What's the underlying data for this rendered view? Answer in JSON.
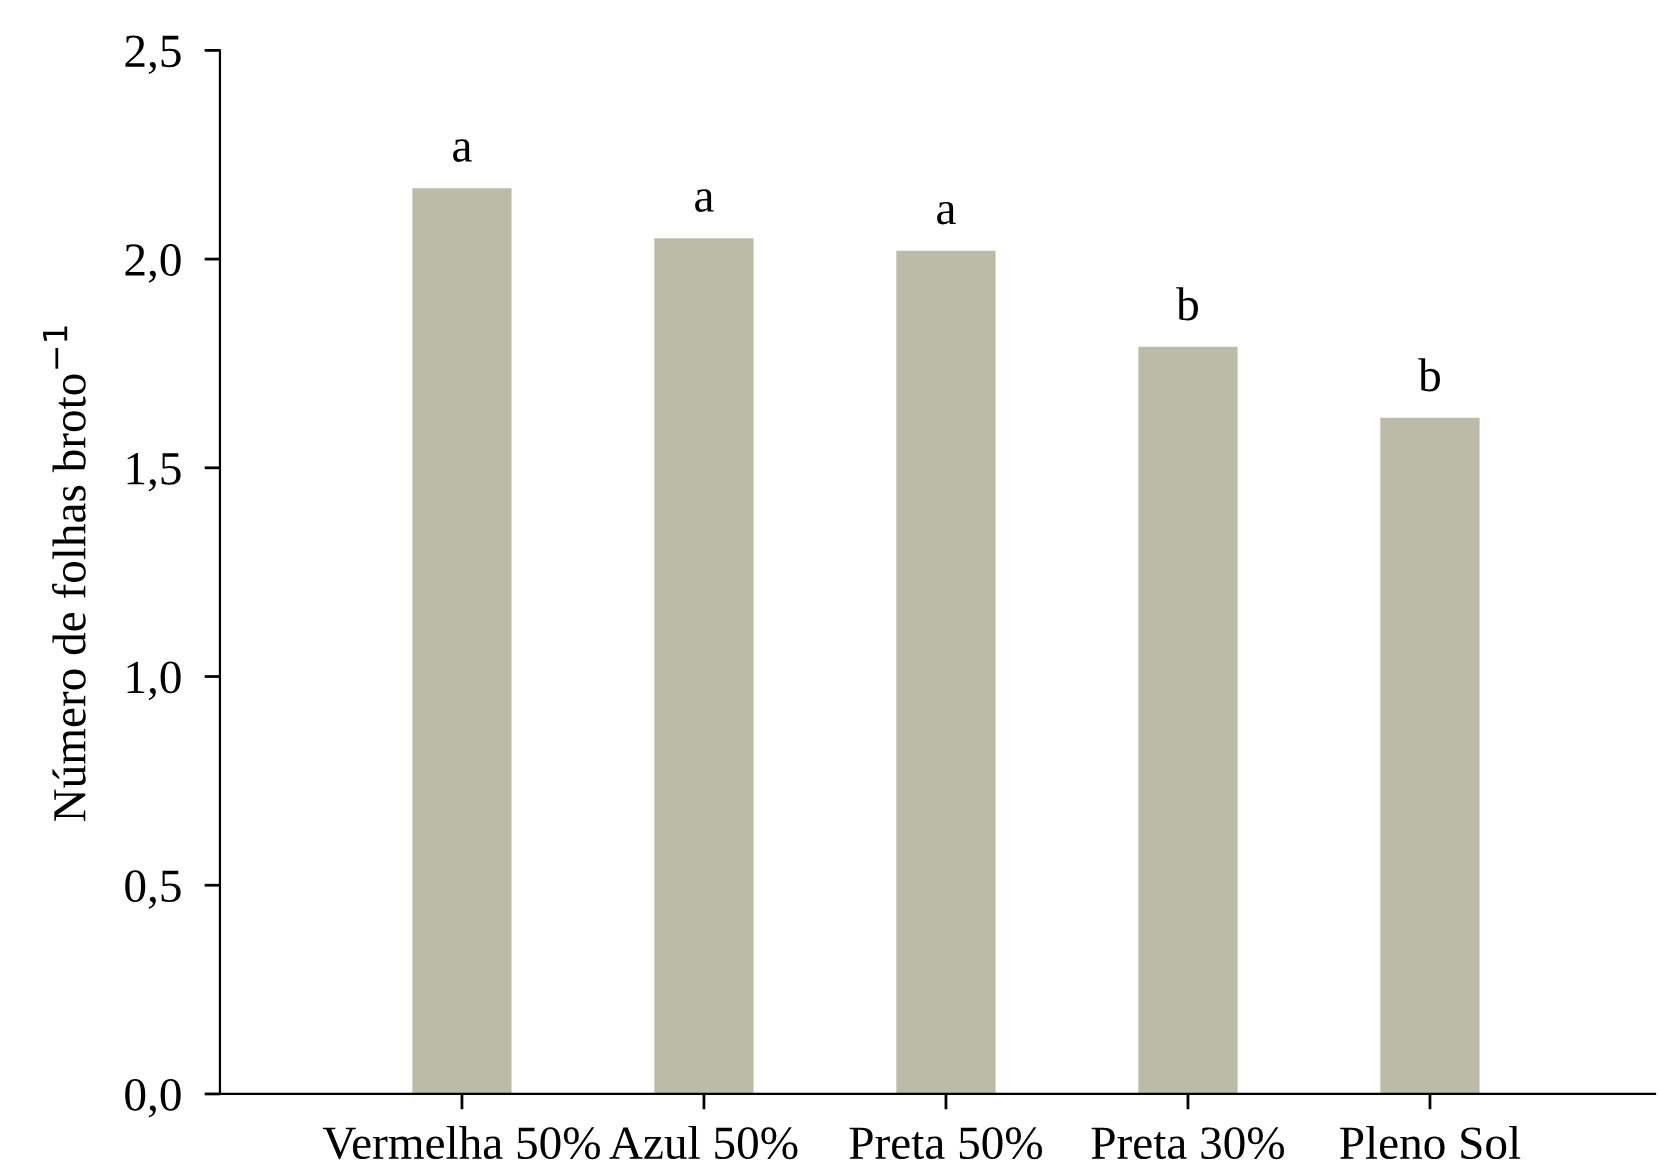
{
  "chart_data": {
    "type": "bar",
    "ylabel": "Número de folhas broto$^{−1}$",
    "categories": [
      "Vermelha 50%",
      "Azul 50%",
      "Preta 50%",
      "Preta 30%",
      "Pleno Sol"
    ],
    "values": [
      2.17,
      2.05,
      2.02,
      1.79,
      1.62
    ],
    "color": "#bbbba8",
    "ylim": [
      0,
      2.5
    ],
    "yticks": [
      {
        "value": 0,
        "label": "0,0"
      },
      {
        "value": 0.5,
        "label": "0,5"
      },
      {
        "value": 1.0,
        "label": "1,0"
      },
      {
        "value": 1.5,
        "label": "1,5"
      },
      {
        "value": 2.0,
        "label": "2,0"
      },
      {
        "value": 2.5,
        "label": "2,5"
      }
    ],
    "annotations": [
      {
        "text": "a",
        "x": "Vermelha 50%",
        "y": 2.17
      },
      {
        "text": "a",
        "x": "Azul 50%",
        "y": 2.05
      },
      {
        "text": "a",
        "x": "Preta 50%",
        "y": 2.02
      },
      {
        "text": "b",
        "x": "Preta 30%",
        "y": 1.79
      },
      {
        "text": "b",
        "x": "Pleno Sol",
        "y": 1.62
      }
    ],
    "grid": false
  }
}
